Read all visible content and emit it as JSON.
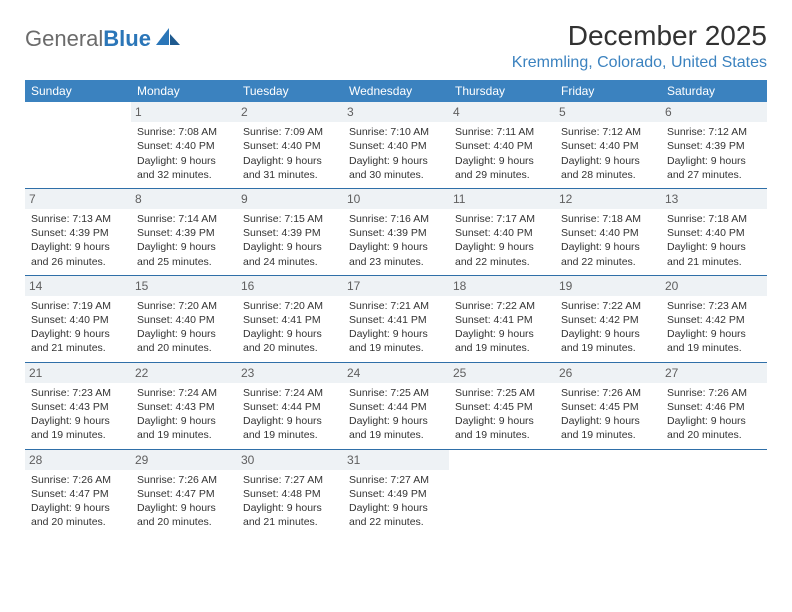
{
  "logo": {
    "word1": "General",
    "word2": "Blue"
  },
  "title": "December 2025",
  "location": "Kremmling, Colorado, United States",
  "colors": {
    "header_bg": "#3b82bf",
    "header_text": "#ffffff",
    "row_divider": "#2f6fa8",
    "daynum_bg": "#eef2f5",
    "logo_gray": "#6b6b6b",
    "logo_blue": "#2b76b8"
  },
  "day_headers": [
    "Sunday",
    "Monday",
    "Tuesday",
    "Wednesday",
    "Thursday",
    "Friday",
    "Saturday"
  ],
  "weeks": [
    [
      {
        "n": "",
        "sr": "",
        "ss": "",
        "dl": ""
      },
      {
        "n": "1",
        "sr": "7:08 AM",
        "ss": "4:40 PM",
        "dl": "9 hours and 32 minutes."
      },
      {
        "n": "2",
        "sr": "7:09 AM",
        "ss": "4:40 PM",
        "dl": "9 hours and 31 minutes."
      },
      {
        "n": "3",
        "sr": "7:10 AM",
        "ss": "4:40 PM",
        "dl": "9 hours and 30 minutes."
      },
      {
        "n": "4",
        "sr": "7:11 AM",
        "ss": "4:40 PM",
        "dl": "9 hours and 29 minutes."
      },
      {
        "n": "5",
        "sr": "7:12 AM",
        "ss": "4:40 PM",
        "dl": "9 hours and 28 minutes."
      },
      {
        "n": "6",
        "sr": "7:12 AM",
        "ss": "4:39 PM",
        "dl": "9 hours and 27 minutes."
      }
    ],
    [
      {
        "n": "7",
        "sr": "7:13 AM",
        "ss": "4:39 PM",
        "dl": "9 hours and 26 minutes."
      },
      {
        "n": "8",
        "sr": "7:14 AM",
        "ss": "4:39 PM",
        "dl": "9 hours and 25 minutes."
      },
      {
        "n": "9",
        "sr": "7:15 AM",
        "ss": "4:39 PM",
        "dl": "9 hours and 24 minutes."
      },
      {
        "n": "10",
        "sr": "7:16 AM",
        "ss": "4:39 PM",
        "dl": "9 hours and 23 minutes."
      },
      {
        "n": "11",
        "sr": "7:17 AM",
        "ss": "4:40 PM",
        "dl": "9 hours and 22 minutes."
      },
      {
        "n": "12",
        "sr": "7:18 AM",
        "ss": "4:40 PM",
        "dl": "9 hours and 22 minutes."
      },
      {
        "n": "13",
        "sr": "7:18 AM",
        "ss": "4:40 PM",
        "dl": "9 hours and 21 minutes."
      }
    ],
    [
      {
        "n": "14",
        "sr": "7:19 AM",
        "ss": "4:40 PM",
        "dl": "9 hours and 21 minutes."
      },
      {
        "n": "15",
        "sr": "7:20 AM",
        "ss": "4:40 PM",
        "dl": "9 hours and 20 minutes."
      },
      {
        "n": "16",
        "sr": "7:20 AM",
        "ss": "4:41 PM",
        "dl": "9 hours and 20 minutes."
      },
      {
        "n": "17",
        "sr": "7:21 AM",
        "ss": "4:41 PM",
        "dl": "9 hours and 19 minutes."
      },
      {
        "n": "18",
        "sr": "7:22 AM",
        "ss": "4:41 PM",
        "dl": "9 hours and 19 minutes."
      },
      {
        "n": "19",
        "sr": "7:22 AM",
        "ss": "4:42 PM",
        "dl": "9 hours and 19 minutes."
      },
      {
        "n": "20",
        "sr": "7:23 AM",
        "ss": "4:42 PM",
        "dl": "9 hours and 19 minutes."
      }
    ],
    [
      {
        "n": "21",
        "sr": "7:23 AM",
        "ss": "4:43 PM",
        "dl": "9 hours and 19 minutes."
      },
      {
        "n": "22",
        "sr": "7:24 AM",
        "ss": "4:43 PM",
        "dl": "9 hours and 19 minutes."
      },
      {
        "n": "23",
        "sr": "7:24 AM",
        "ss": "4:44 PM",
        "dl": "9 hours and 19 minutes."
      },
      {
        "n": "24",
        "sr": "7:25 AM",
        "ss": "4:44 PM",
        "dl": "9 hours and 19 minutes."
      },
      {
        "n": "25",
        "sr": "7:25 AM",
        "ss": "4:45 PM",
        "dl": "9 hours and 19 minutes."
      },
      {
        "n": "26",
        "sr": "7:26 AM",
        "ss": "4:45 PM",
        "dl": "9 hours and 19 minutes."
      },
      {
        "n": "27",
        "sr": "7:26 AM",
        "ss": "4:46 PM",
        "dl": "9 hours and 20 minutes."
      }
    ],
    [
      {
        "n": "28",
        "sr": "7:26 AM",
        "ss": "4:47 PM",
        "dl": "9 hours and 20 minutes."
      },
      {
        "n": "29",
        "sr": "7:26 AM",
        "ss": "4:47 PM",
        "dl": "9 hours and 20 minutes."
      },
      {
        "n": "30",
        "sr": "7:27 AM",
        "ss": "4:48 PM",
        "dl": "9 hours and 21 minutes."
      },
      {
        "n": "31",
        "sr": "7:27 AM",
        "ss": "4:49 PM",
        "dl": "9 hours and 22 minutes."
      },
      {
        "n": "",
        "sr": "",
        "ss": "",
        "dl": ""
      },
      {
        "n": "",
        "sr": "",
        "ss": "",
        "dl": ""
      },
      {
        "n": "",
        "sr": "",
        "ss": "",
        "dl": ""
      }
    ]
  ],
  "labels": {
    "sunrise": "Sunrise:",
    "sunset": "Sunset:",
    "daylight": "Daylight:"
  }
}
